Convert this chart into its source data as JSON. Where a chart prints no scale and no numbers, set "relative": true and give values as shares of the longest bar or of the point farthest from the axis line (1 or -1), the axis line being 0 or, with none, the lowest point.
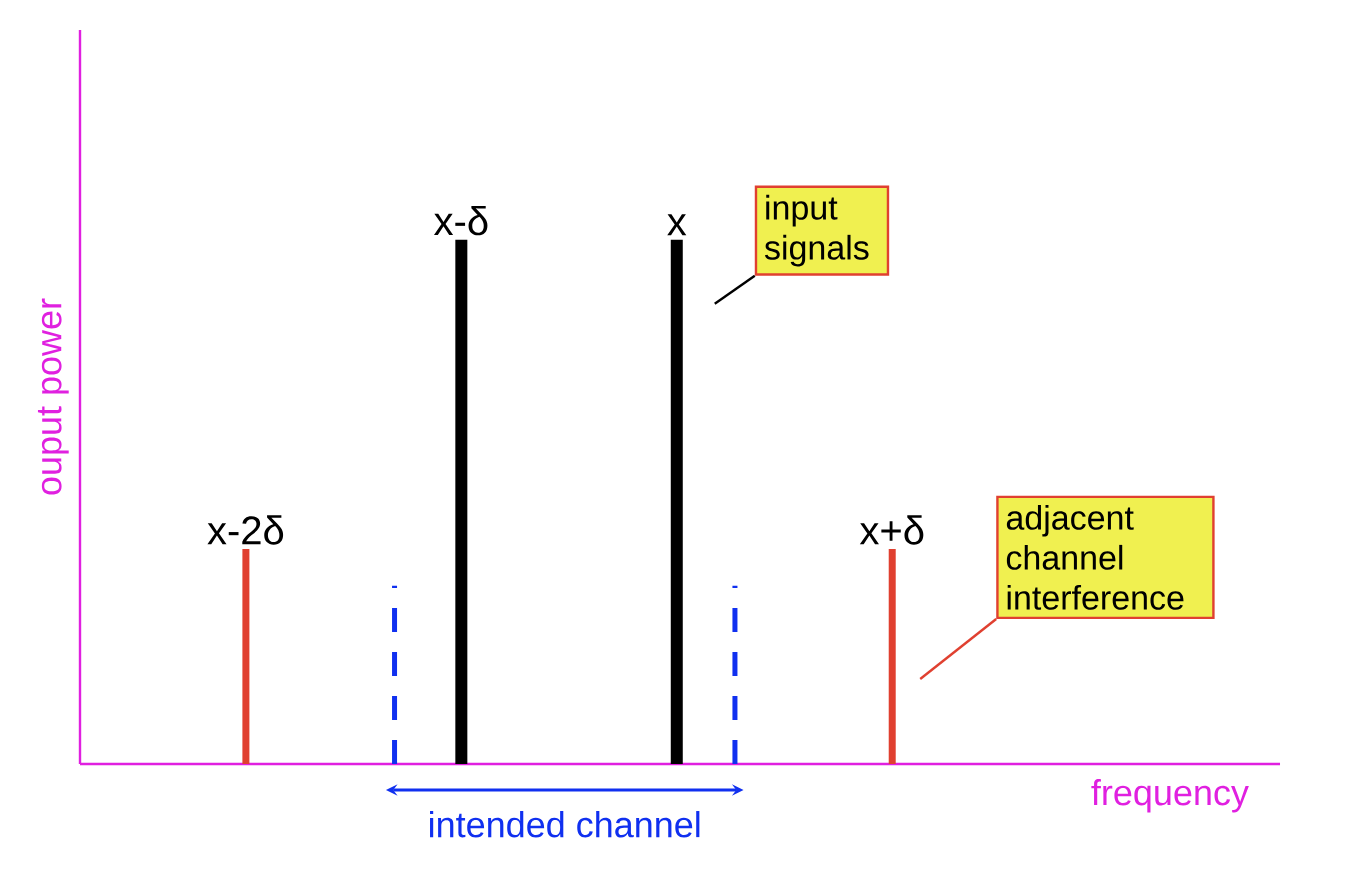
{
  "chart_data": {
    "type": "bar",
    "relative": true,
    "categories": [
      "x-2δ",
      "x-δ",
      "x",
      "x+δ"
    ],
    "values": [
      0.41,
      1,
      1,
      0.41
    ],
    "colors": [
      "#e04030",
      "#000000",
      "#000000",
      "#e04030"
    ],
    "xlabel": "frequency",
    "ylabel": "ouput power",
    "annotations": [
      "input signals",
      "adjacent channel interference",
      "intended channel"
    ]
  }
}
